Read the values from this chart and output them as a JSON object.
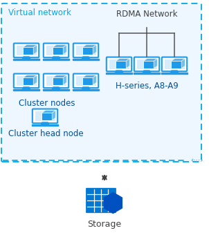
{
  "bg_color": "#ffffff",
  "vnet_label": "Virtual network",
  "vnet_border_color": "#00a8e8",
  "vnet_bg_color": "#eef7ff",
  "rdma_label": "RDMA Network",
  "cluster_nodes_label": "Cluster nodes",
  "h_series_label": "H-series, A8-A9",
  "cluster_head_label": "Cluster head node",
  "storage_label": "Storage",
  "monitor_color": "#1e9ae8",
  "monitor_border": "#0078d4",
  "arrow_color": "#404040",
  "dots_color": "#00a8e8",
  "rdma_line_color": "#555555",
  "font_color": "#404040",
  "storage_blue": "#0078d4",
  "storage_hex": "#0050c0",
  "label_color": "#0050a0"
}
